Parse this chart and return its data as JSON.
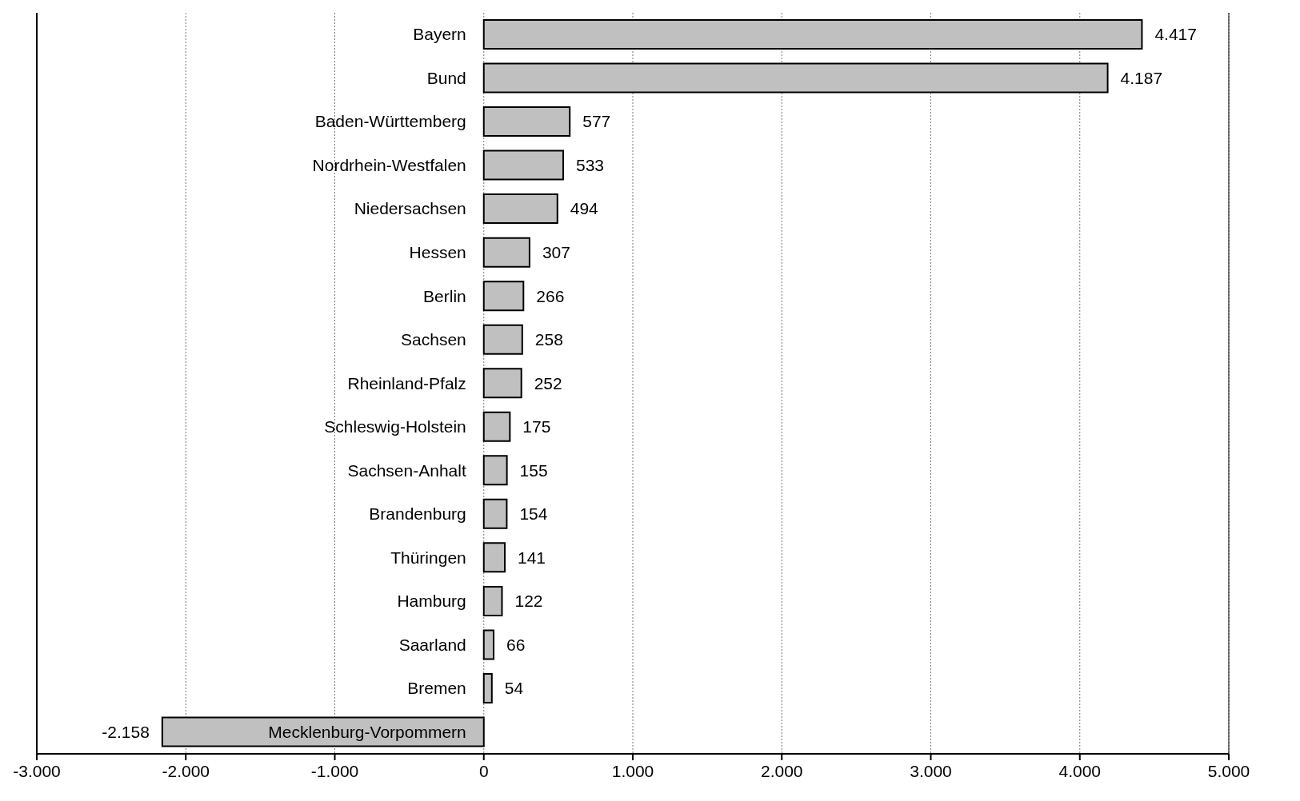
{
  "chart_data": {
    "type": "bar",
    "orientation": "horizontal",
    "categories": [
      "Bayern",
      "Bund",
      "Baden-Württemberg",
      "Nordrhein-Westfalen",
      "Niedersachsen",
      "Hessen",
      "Berlin",
      "Sachsen",
      "Rheinland-Pfalz",
      "Schleswig-Holstein",
      "Sachsen-Anhalt",
      "Brandenburg",
      "Thüringen",
      "Hamburg",
      "Saarland",
      "Bremen",
      "Mecklenburg-Vorpommern"
    ],
    "values": [
      4417,
      4187,
      577,
      533,
      494,
      307,
      266,
      258,
      252,
      175,
      155,
      154,
      141,
      122,
      66,
      54,
      -2158
    ],
    "value_labels": [
      "4.417",
      "4.187",
      "577",
      "533",
      "494",
      "307",
      "266",
      "258",
      "252",
      "175",
      "155",
      "154",
      "141",
      "122",
      "66",
      "54",
      "-2.158"
    ],
    "color": "#c0c0c0",
    "xlim": [
      -3000,
      5000
    ],
    "xticks": [
      {
        "value": -3000,
        "label": "-3.000"
      },
      {
        "value": -2000,
        "label": "-2.000"
      },
      {
        "value": -1000,
        "label": "-1.000"
      },
      0,
      {
        "value": 1000,
        "label": "1.000"
      },
      {
        "value": 2000,
        "label": "2.000"
      },
      {
        "value": 3000,
        "label": "3.000"
      },
      {
        "value": 4000,
        "label": "4.000"
      },
      {
        "value": 5000,
        "label": "5.000"
      }
    ],
    "grid": "x"
  }
}
